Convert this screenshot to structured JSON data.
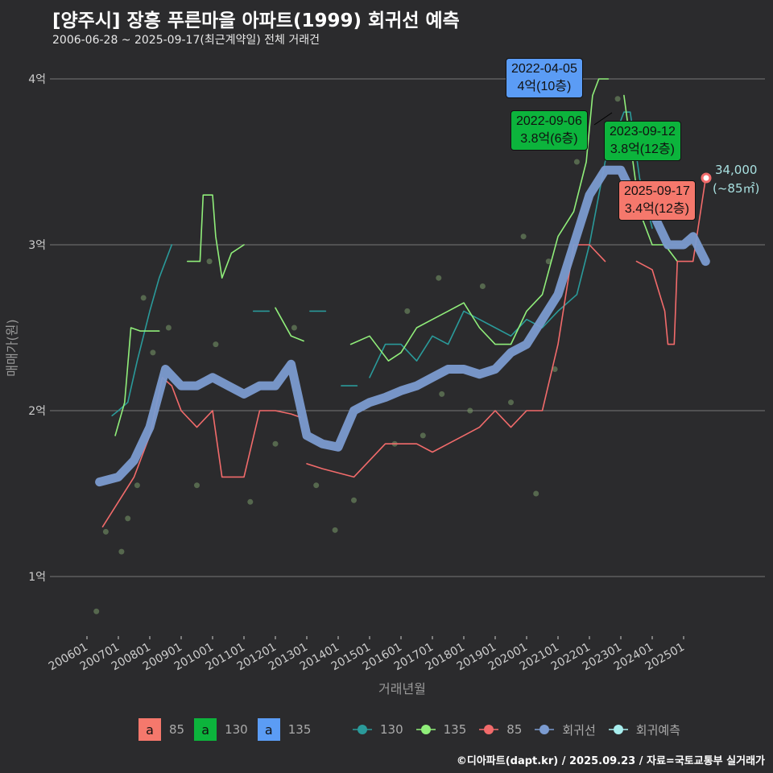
{
  "chart_data": {
    "type": "line",
    "title": "[양주시] 장흥 푸른마을 아파트(1999) 회귀선 예측",
    "subtitle": "2006-06-28 ~ 2025-09-17(최근계약일) 전체 거래건",
    "xlabel": "거래년월",
    "ylabel": "매매가(원)",
    "ylim": [
      0.7,
      4.2
    ],
    "yticks": [
      {
        "v": 1,
        "label": "1억"
      },
      {
        "v": 2,
        "label": "2억"
      },
      {
        "v": 3,
        "label": "3억"
      },
      {
        "v": 4,
        "label": "4억"
      }
    ],
    "xticks": [
      "200601",
      "200701",
      "200801",
      "200901",
      "201001",
      "201101",
      "201201",
      "201301",
      "201401",
      "201501",
      "201601",
      "201701",
      "201801",
      "201901",
      "202001",
      "202101",
      "202201",
      "202301",
      "202401",
      "202501"
    ],
    "series": [
      {
        "name": "130",
        "color": "#2a9a9a",
        "points": [
          [
            2006.8,
            1.97
          ],
          [
            2007.0,
            2.0
          ],
          [
            2007.3,
            2.05
          ],
          [
            2007.6,
            2.3
          ],
          [
            2008.0,
            2.6
          ],
          [
            2008.3,
            2.8
          ],
          [
            2008.7,
            3.0
          ],
          null,
          [
            2011.3,
            2.6
          ],
          [
            2011.8,
            2.6
          ],
          null,
          [
            2013.1,
            2.6
          ],
          [
            2013.6,
            2.6
          ],
          null,
          [
            2014.1,
            2.15
          ],
          [
            2014.6,
            2.15
          ],
          null,
          [
            2015.0,
            2.2
          ],
          [
            2015.5,
            2.4
          ],
          [
            2016.0,
            2.4
          ],
          [
            2016.5,
            2.3
          ],
          [
            2017.0,
            2.45
          ],
          [
            2017.5,
            2.4
          ],
          [
            2018.0,
            2.6
          ],
          [
            2018.5,
            2.55
          ],
          [
            2019.0,
            2.5
          ],
          [
            2019.5,
            2.45
          ],
          [
            2020.0,
            2.55
          ],
          [
            2020.5,
            2.5
          ],
          [
            2021.0,
            2.6
          ],
          [
            2021.6,
            2.7
          ],
          [
            2022.0,
            3.0
          ],
          [
            2022.5,
            3.5
          ],
          [
            2023.1,
            3.8
          ],
          [
            2023.3,
            3.8
          ],
          [
            2023.6,
            3.4
          ],
          [
            2024.0,
            3.1
          ]
        ]
      },
      {
        "name": "135",
        "color": "#90ee7a",
        "points": [
          [
            2006.9,
            1.85
          ],
          [
            2007.2,
            2.05
          ],
          [
            2007.4,
            2.5
          ],
          [
            2007.7,
            2.48
          ],
          [
            2008.3,
            2.48
          ],
          null,
          [
            2009.2,
            2.9
          ],
          [
            2009.6,
            2.9
          ],
          [
            2009.7,
            3.3
          ],
          [
            2010.0,
            3.3
          ],
          [
            2010.1,
            3.05
          ],
          [
            2010.3,
            2.8
          ],
          [
            2010.6,
            2.95
          ],
          [
            2011.0,
            3.0
          ],
          null,
          [
            2012.0,
            2.62
          ],
          [
            2012.5,
            2.45
          ],
          [
            2012.9,
            2.42
          ],
          null,
          [
            2014.4,
            2.4
          ],
          [
            2015.0,
            2.45
          ],
          [
            2015.6,
            2.3
          ],
          [
            2016.0,
            2.35
          ],
          [
            2016.5,
            2.5
          ],
          [
            2017.0,
            2.55
          ],
          [
            2017.5,
            2.6
          ],
          [
            2018.0,
            2.65
          ],
          [
            2018.5,
            2.5
          ],
          [
            2019.0,
            2.4
          ],
          [
            2019.5,
            2.4
          ],
          [
            2020.0,
            2.6
          ],
          [
            2020.5,
            2.7
          ],
          [
            2021.0,
            3.05
          ],
          [
            2021.5,
            3.2
          ],
          [
            2021.9,
            3.5
          ],
          [
            2022.1,
            3.9
          ],
          [
            2022.3,
            4.0
          ],
          [
            2022.6,
            4.0
          ],
          null,
          [
            2023.1,
            3.9
          ],
          [
            2023.6,
            3.2
          ],
          [
            2024.0,
            3.0
          ],
          [
            2024.4,
            3.0
          ],
          [
            2024.8,
            2.9
          ]
        ]
      },
      {
        "name": "85",
        "color": "#f26b6b",
        "points": [
          [
            2006.5,
            1.3
          ],
          [
            2007.0,
            1.45
          ],
          [
            2007.5,
            1.6
          ],
          [
            2008.0,
            1.85
          ],
          [
            2008.4,
            2.2
          ],
          [
            2008.7,
            2.15
          ],
          [
            2009.0,
            2.0
          ],
          [
            2009.5,
            1.9
          ],
          [
            2010.0,
            2.0
          ],
          [
            2010.3,
            1.6
          ],
          [
            2011.0,
            1.6
          ],
          [
            2011.5,
            2.0
          ],
          [
            2012.0,
            2.0
          ],
          [
            2012.5,
            1.98
          ],
          [
            2012.8,
            1.96
          ],
          null,
          [
            2013.0,
            1.68
          ],
          [
            2013.5,
            1.65
          ],
          [
            2014.5,
            1.6
          ],
          [
            2015.0,
            1.7
          ],
          [
            2015.5,
            1.8
          ],
          [
            2016.5,
            1.8
          ],
          [
            2017.0,
            1.75
          ],
          [
            2017.5,
            1.8
          ],
          [
            2018.0,
            1.85
          ],
          [
            2018.5,
            1.9
          ],
          [
            2019.0,
            2.0
          ],
          [
            2019.5,
            1.9
          ],
          [
            2020.0,
            2.0
          ],
          [
            2020.5,
            2.0
          ],
          [
            2021.0,
            2.4
          ],
          [
            2021.5,
            3.0
          ],
          [
            2022.0,
            3.0
          ],
          [
            2022.5,
            2.9
          ],
          null,
          [
            2023.5,
            2.9
          ],
          [
            2024.0,
            2.85
          ],
          [
            2024.4,
            2.6
          ],
          [
            2024.5,
            2.4
          ],
          [
            2024.7,
            2.4
          ],
          [
            2024.8,
            2.9
          ],
          [
            2025.3,
            2.9
          ],
          [
            2025.7,
            3.4
          ]
        ]
      },
      {
        "name": "회귀선",
        "color": "#7b9bd0",
        "points": [
          [
            2006.4,
            1.57
          ],
          [
            2007.0,
            1.6
          ],
          [
            2007.5,
            1.7
          ],
          [
            2008.0,
            1.9
          ],
          [
            2008.5,
            2.25
          ],
          [
            2009.0,
            2.15
          ],
          [
            2009.5,
            2.15
          ],
          [
            2010.0,
            2.2
          ],
          [
            2010.5,
            2.15
          ],
          [
            2011.0,
            2.1
          ],
          [
            2011.5,
            2.15
          ],
          [
            2012.0,
            2.15
          ],
          [
            2012.5,
            2.28
          ],
          [
            2013.0,
            1.85
          ],
          [
            2013.5,
            1.8
          ],
          [
            2014.0,
            1.78
          ],
          [
            2014.5,
            2.0
          ],
          [
            2015.0,
            2.05
          ],
          [
            2015.5,
            2.08
          ],
          [
            2016.0,
            2.12
          ],
          [
            2016.5,
            2.15
          ],
          [
            2017.0,
            2.2
          ],
          [
            2017.5,
            2.25
          ],
          [
            2018.0,
            2.25
          ],
          [
            2018.5,
            2.22
          ],
          [
            2019.0,
            2.25
          ],
          [
            2019.5,
            2.35
          ],
          [
            2020.0,
            2.4
          ],
          [
            2020.5,
            2.55
          ],
          [
            2021.0,
            2.7
          ],
          [
            2021.5,
            3.0
          ],
          [
            2022.0,
            3.3
          ],
          [
            2022.5,
            3.45
          ],
          [
            2023.0,
            3.45
          ],
          [
            2023.5,
            3.25
          ],
          [
            2024.0,
            3.2
          ],
          [
            2024.5,
            3.0
          ],
          [
            2025.0,
            3.0
          ],
          [
            2025.3,
            3.05
          ],
          [
            2025.7,
            2.9
          ]
        ]
      }
    ],
    "scatter": [
      [
        2006.3,
        0.79
      ],
      [
        2006.6,
        1.27
      ],
      [
        2007.1,
        1.15
      ],
      [
        2007.3,
        1.35
      ],
      [
        2007.6,
        1.55
      ],
      [
        2008.1,
        2.35
      ],
      [
        2008.6,
        2.5
      ],
      [
        2009.5,
        1.55
      ],
      [
        2010.1,
        2.4
      ],
      [
        2011.2,
        1.45
      ],
      [
        2012.0,
        1.8
      ],
      [
        2013.3,
        1.55
      ],
      [
        2013.9,
        1.28
      ],
      [
        2014.5,
        1.46
      ],
      [
        2015.8,
        1.8
      ],
      [
        2016.7,
        1.85
      ],
      [
        2017.3,
        2.1
      ],
      [
        2018.2,
        2.0
      ],
      [
        2019.5,
        2.05
      ],
      [
        2020.3,
        1.5
      ],
      [
        2020.9,
        2.25
      ],
      [
        2007.8,
        2.68
      ],
      [
        2009.9,
        2.9
      ],
      [
        2012.6,
        2.5
      ],
      [
        2016.2,
        2.6
      ],
      [
        2017.2,
        2.8
      ],
      [
        2018.6,
        2.75
      ],
      [
        2019.9,
        3.05
      ],
      [
        2020.7,
        2.9
      ],
      [
        2021.6,
        3.5
      ],
      [
        2022.9,
        3.88
      ],
      [
        2023.4,
        3.6
      ]
    ],
    "annotations": [
      {
        "date": "2022-04-05",
        "label": "4억(10층)",
        "color": "#5b9cf5"
      },
      {
        "date": "2022-09-06",
        "label": "3.8억(6층)",
        "color": "#0cb43c"
      },
      {
        "date": "2023-09-12",
        "label": "3.8억(12층)",
        "color": "#0cb43c"
      },
      {
        "date": "2025-09-17",
        "label": "3.4억(12층)",
        "color": "#f5786c"
      }
    ],
    "endpoint": {
      "value": "34,000",
      "area": "(~85㎡)"
    },
    "legend_box": [
      {
        "label": "85",
        "color": "#f5786c"
      },
      {
        "label": "130",
        "color": "#0cb43c"
      },
      {
        "label": "135",
        "color": "#5b9cf5"
      }
    ],
    "legend_line": [
      {
        "label": "130",
        "color": "#2a9a9a"
      },
      {
        "label": "135",
        "color": "#90ee7a"
      },
      {
        "label": "85",
        "color": "#f26b6b"
      },
      {
        "label": "회귀선",
        "color": "#7b9bd0"
      },
      {
        "label": "회귀예측",
        "color": "#a8eeee"
      }
    ],
    "legend_box_glyph": "a"
  },
  "footer": "©디아파트(dapt.kr) / 2025.09.23 / 자료=국토교통부 실거래가"
}
